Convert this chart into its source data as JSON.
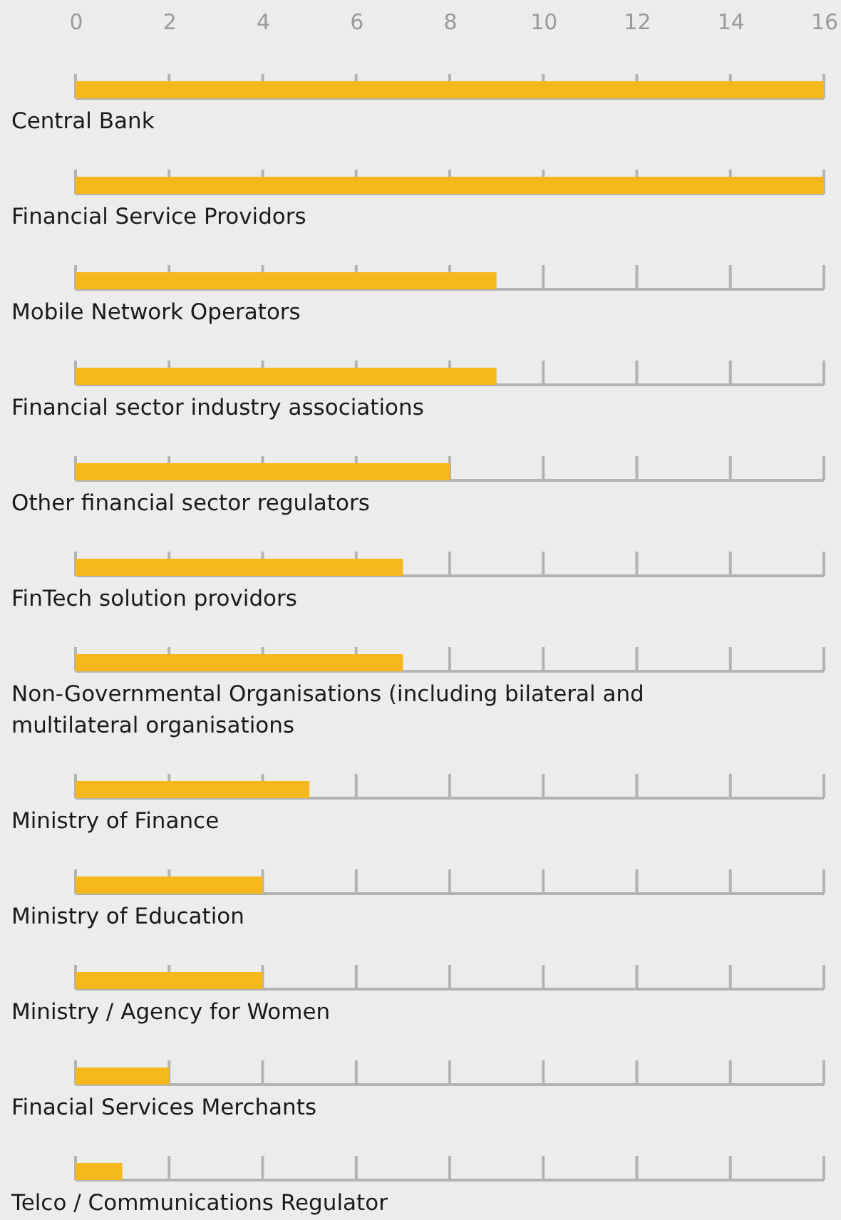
{
  "chart_data": {
    "type": "bar",
    "orientation": "horizontal",
    "categories": [
      "Central Bank",
      "Financial Service Providors",
      "Mobile Network Operators",
      "Financial sector industry associations",
      "Other financial sector regulators",
      "FinTech solution providors",
      "Non-Governmental Organisations (including bilateral and multilateral organisations",
      "Ministry of Finance",
      "Ministry of Education",
      "Ministry / Agency for Women",
      "Finacial Services Merchants",
      "Telco / Communications Regulator"
    ],
    "values": [
      16,
      16,
      9,
      9,
      8,
      7,
      7,
      5,
      4,
      4,
      2,
      1
    ],
    "color": "#f5b81c",
    "xlim": [
      0,
      16
    ],
    "xticks": [
      0,
      2,
      4,
      6,
      8,
      10,
      12,
      14,
      16
    ],
    "grid": "y"
  }
}
